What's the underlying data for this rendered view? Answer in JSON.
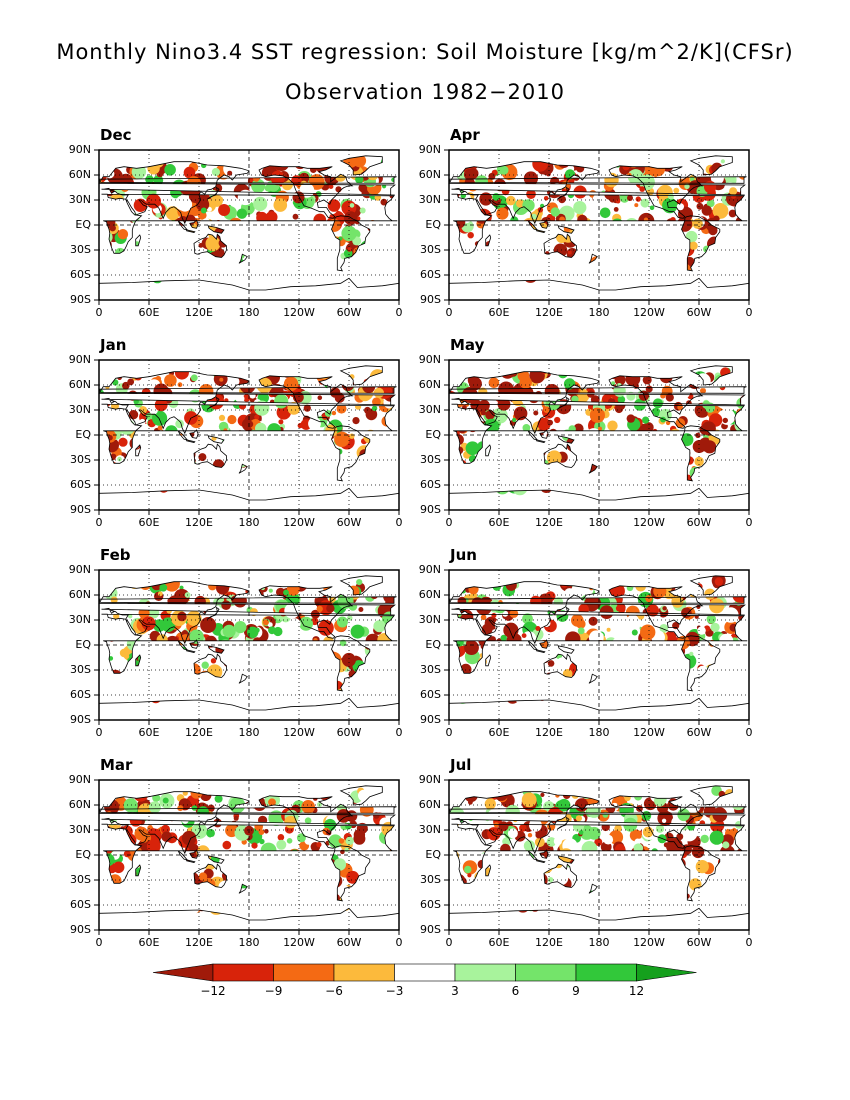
{
  "title": {
    "line1": "Monthly Nino3.4 SST regression: Soil Moisture [kg/m^2/K](CFSr)",
    "line2": "Observation 1982−2010"
  },
  "panels": [
    {
      "id": "dec",
      "label": "Dec",
      "col": 0,
      "row": 0
    },
    {
      "id": "jan",
      "label": "Jan",
      "col": 0,
      "row": 1
    },
    {
      "id": "feb",
      "label": "Feb",
      "col": 0,
      "row": 2
    },
    {
      "id": "mar",
      "label": "Mar",
      "col": 0,
      "row": 3
    },
    {
      "id": "apr",
      "label": "Apr",
      "col": 1,
      "row": 0
    },
    {
      "id": "may",
      "label": "May",
      "col": 1,
      "row": 1
    },
    {
      "id": "jun",
      "label": "Jun",
      "col": 1,
      "row": 2
    },
    {
      "id": "jul",
      "label": "Jul",
      "col": 1,
      "row": 3
    }
  ],
  "axes": {
    "lat_ticks": [
      "90N",
      "60N",
      "30N",
      "EQ",
      "30S",
      "60S",
      "90S"
    ],
    "lon_ticks": [
      "0",
      "60E",
      "120E",
      "180",
      "120W",
      "60W",
      "0"
    ]
  },
  "colorbar": {
    "levels": [
      "−12",
      "−9",
      "−6",
      "−3",
      "3",
      "6",
      "9",
      "12"
    ],
    "colors": [
      "#a01a0a",
      "#d8230a",
      "#f46a14",
      "#fcba3c",
      "#ffffff",
      "#a8f39c",
      "#74e46a",
      "#32c83a",
      "#15a01d"
    ]
  }
}
